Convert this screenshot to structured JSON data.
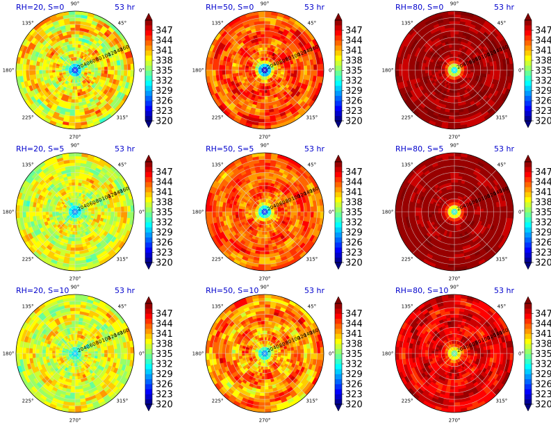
{
  "figure": {
    "time_label": "53 hr",
    "colormap": "jet",
    "colorbar_ticks": [
      "320",
      "323",
      "326",
      "329",
      "332",
      "335",
      "338",
      "341",
      "344",
      "347"
    ],
    "colorbar_range": [
      320,
      350
    ],
    "angle_labels": [
      "0°",
      "45°",
      "90°",
      "135°",
      "180°",
      "225°",
      "270°",
      "315°"
    ],
    "radial_ticks": [
      "20",
      "40",
      "60",
      "80",
      "100",
      "120",
      "140",
      "160"
    ],
    "radial_range": [
      0,
      180
    ]
  },
  "chart_data": [
    {
      "type": "heatmap",
      "projection": "polar",
      "title": "RH=20, S=0",
      "time": "53 hr",
      "rh": 20,
      "s": 0,
      "center_value": 325,
      "mean_value": 339,
      "variability": 4.5
    },
    {
      "type": "heatmap",
      "projection": "polar",
      "title": "RH=50, S=0",
      "time": "53 hr",
      "rh": 50,
      "s": 0,
      "center_value": 321,
      "mean_value": 344,
      "variability": 3.5
    },
    {
      "type": "heatmap",
      "projection": "polar",
      "title": "RH=80, S=0",
      "time": "53 hr",
      "rh": 80,
      "s": 0,
      "center_value": 330,
      "mean_value": 349,
      "variability": 1.5
    },
    {
      "type": "heatmap",
      "projection": "polar",
      "title": "RH=20, S=5",
      "time": "53 hr",
      "rh": 20,
      "s": 5,
      "center_value": 327,
      "mean_value": 338,
      "variability": 3.5
    },
    {
      "type": "heatmap",
      "projection": "polar",
      "title": "RH=50, S=5",
      "time": "53 hr",
      "rh": 50,
      "s": 5,
      "center_value": 325,
      "mean_value": 343.5,
      "variability": 3.0
    },
    {
      "type": "heatmap",
      "projection": "polar",
      "title": "RH=80, S=5",
      "time": "53 hr",
      "rh": 80,
      "s": 5,
      "center_value": 332,
      "mean_value": 349,
      "variability": 1.0
    },
    {
      "type": "heatmap",
      "projection": "polar",
      "title": "RH=20, S=10",
      "time": "53 hr",
      "rh": 20,
      "s": 10,
      "center_value": 330,
      "mean_value": 338,
      "variability": 3.5
    },
    {
      "type": "heatmap",
      "projection": "polar",
      "title": "RH=50, S=10",
      "time": "53 hr",
      "rh": 50,
      "s": 10,
      "center_value": 327,
      "mean_value": 342,
      "variability": 4.0
    },
    {
      "type": "heatmap",
      "projection": "polar",
      "title": "RH=80, S=10",
      "time": "53 hr",
      "rh": 80,
      "s": 10,
      "center_value": 334,
      "mean_value": 347,
      "variability": 2.5
    }
  ]
}
